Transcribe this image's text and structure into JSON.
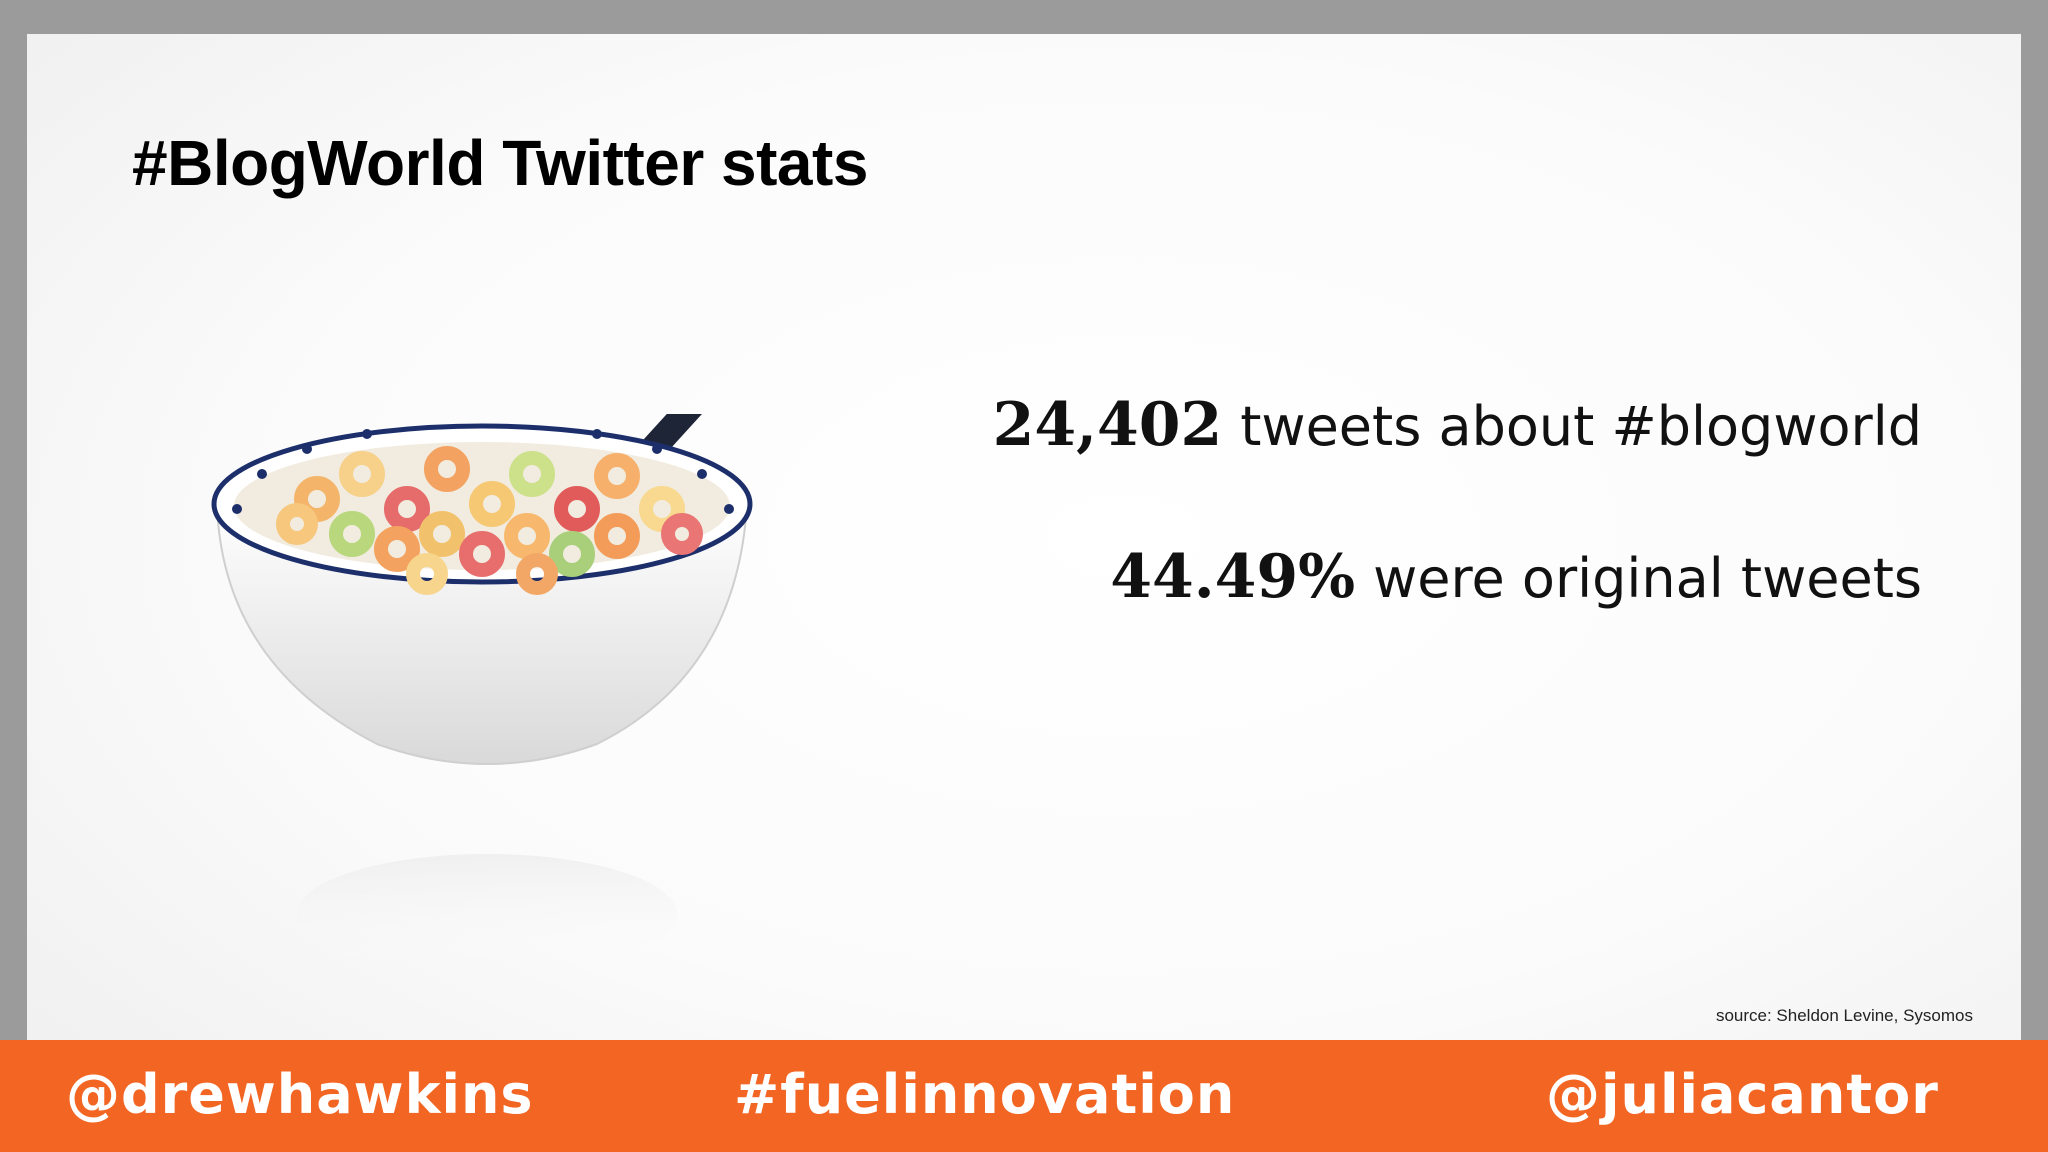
{
  "slide": {
    "title": "#BlogWorld Twitter stats",
    "stats": [
      {
        "number": "24,402",
        "text": "tweets about #blogworld"
      },
      {
        "number": "44.49%",
        "text": "were original tweets"
      }
    ],
    "source": "source: Sheldon Levine, Sysomos",
    "image_icon": "cereal-bowl-icon"
  },
  "footer": {
    "left": "@drewhawkins",
    "center": "#fuelinnovation",
    "right": "@juliacantor"
  },
  "colors": {
    "footer_background": "#f26522",
    "frame_background": "#9b9b9b",
    "text": "#000000"
  }
}
